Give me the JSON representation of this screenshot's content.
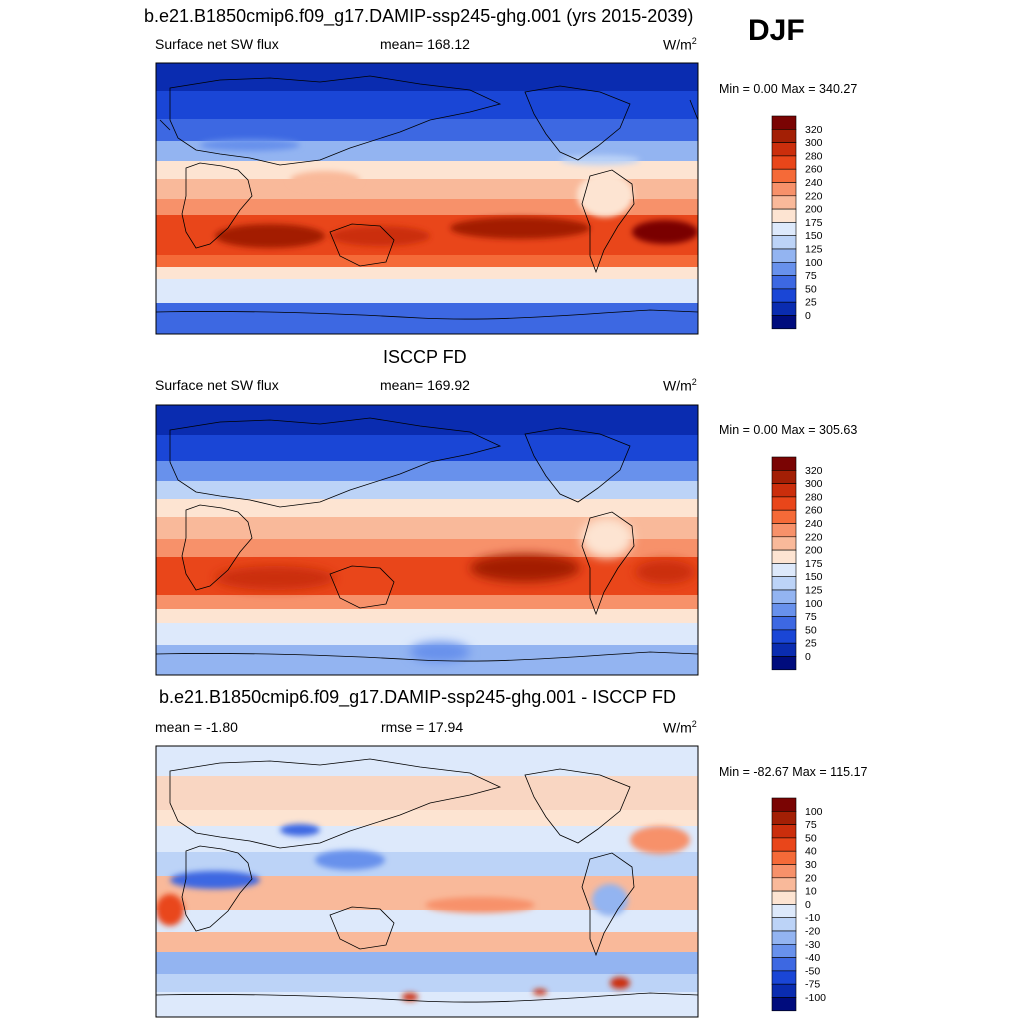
{
  "season": "DJF",
  "panels": [
    {
      "title": "b.e21.B1850cmip6.f09_g17.DAMIP-ssp245-ghg.001 (yrs 2015-2039)",
      "left_label": "Surface net SW flux",
      "center_label": "mean= 168.12",
      "units_base": "W/m",
      "units_sup": "2",
      "minmax": "Min =   0.00 Max = 340.27",
      "colorbar": {
        "labels": [
          "320",
          "300",
          "280",
          "260",
          "240",
          "220",
          "200",
          "175",
          "150",
          "125",
          "100",
          "75",
          "50",
          "25",
          "0"
        ],
        "colors": [
          "#7a0403",
          "#a31f05",
          "#cb2e0c",
          "#e9461a",
          "#f56a38",
          "#f7916a",
          "#f9b99a",
          "#fde4d2",
          "#dde9fb",
          "#bcd3f7",
          "#93b4f1",
          "#6891ec",
          "#3d68e2",
          "#1a46d6",
          "#0a2cb0",
          "#000c7d"
        ]
      },
      "map": {
        "type": "absolute",
        "mean_value": 168.12
      }
    },
    {
      "title": "ISCCP FD",
      "left_label": "Surface net SW flux",
      "center_label": "mean= 169.92",
      "units_base": "W/m",
      "units_sup": "2",
      "minmax": "Min =   0.00 Max = 305.63",
      "colorbar": {
        "labels": [
          "320",
          "300",
          "280",
          "260",
          "240",
          "220",
          "200",
          "175",
          "150",
          "125",
          "100",
          "75",
          "50",
          "25",
          "0"
        ],
        "colors": [
          "#7a0403",
          "#a31f05",
          "#cb2e0c",
          "#e9461a",
          "#f56a38",
          "#f7916a",
          "#f9b99a",
          "#fde4d2",
          "#dde9fb",
          "#bcd3f7",
          "#93b4f1",
          "#6891ec",
          "#3d68e2",
          "#1a46d6",
          "#0a2cb0",
          "#000c7d"
        ]
      },
      "map": {
        "type": "absolute",
        "mean_value": 169.92
      }
    },
    {
      "title": "b.e21.B1850cmip6.f09_g17.DAMIP-ssp245-ghg.001 - ISCCP FD",
      "left_label": "mean =  -1.80",
      "center_label": "rmse =  17.94",
      "units_base": "W/m",
      "units_sup": "2",
      "minmax": "Min = -82.67 Max = 115.17",
      "colorbar": {
        "labels": [
          "100",
          "75",
          "50",
          "40",
          "30",
          "20",
          "10",
          "0",
          "-10",
          "-20",
          "-30",
          "-40",
          "-50",
          "-75",
          "-100"
        ],
        "colors": [
          "#7a0403",
          "#a31f05",
          "#cb2e0c",
          "#e9461a",
          "#f56a38",
          "#f7916a",
          "#f9b99a",
          "#fde4d2",
          "#dde9fb",
          "#bcd3f7",
          "#93b4f1",
          "#6891ec",
          "#3d68e2",
          "#1a46d6",
          "#0a2cb0",
          "#000c7d"
        ]
      },
      "map": {
        "type": "difference",
        "mean_value": -1.8,
        "rmse": 17.94
      }
    }
  ]
}
